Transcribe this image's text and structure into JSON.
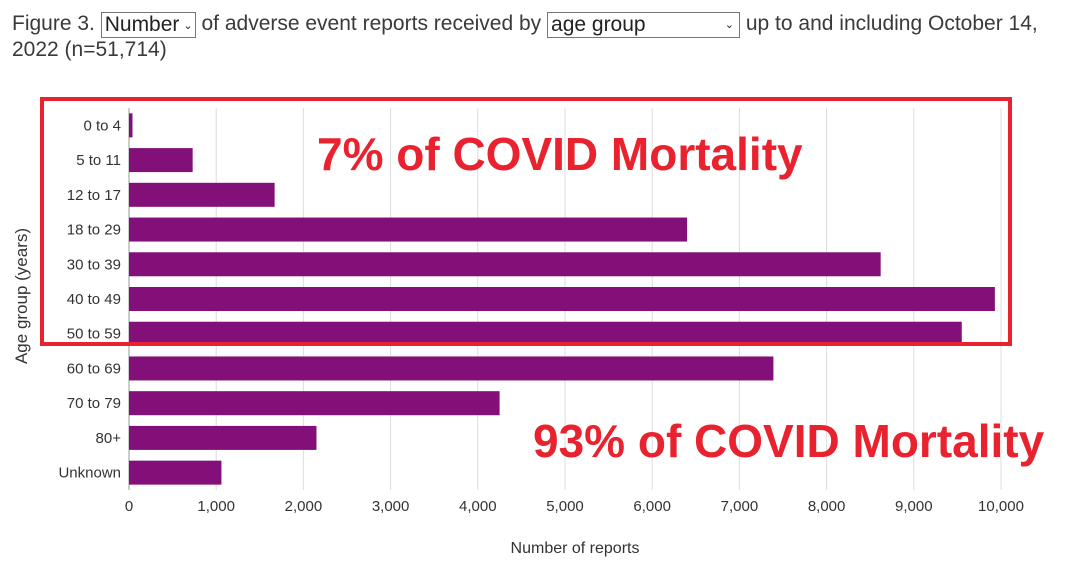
{
  "header": {
    "prefix": "Figure 3.",
    "metric_select": "Number",
    "middle": "of adverse event reports received by",
    "group_select": "age group",
    "suffix": "up to and including October 14, 2022 (n=51,714)"
  },
  "annotations": {
    "top": "7% of COVID Mortality",
    "bottom": "93% of COVID Mortality"
  },
  "colors": {
    "bar": "#821078",
    "annotation": "#e8222e",
    "grid": "#dddddd"
  },
  "chart_data": {
    "type": "bar",
    "orientation": "horizontal",
    "title": "",
    "xlabel": "Number of reports",
    "ylabel": "Age group (years)",
    "categories": [
      "0 to 4",
      "5 to 11",
      "12 to 17",
      "18 to 29",
      "30 to 39",
      "40 to 49",
      "50 to 59",
      "60 to 69",
      "70 to 79",
      "80+",
      "Unknown"
    ],
    "values": [
      40,
      730,
      1670,
      6400,
      8620,
      9930,
      9550,
      7390,
      4250,
      2150,
      1060
    ],
    "xlim": [
      0,
      10000
    ],
    "xticks": [
      0,
      1000,
      2000,
      3000,
      4000,
      5000,
      6000,
      7000,
      8000,
      9000,
      10000
    ],
    "xtick_labels": [
      "0",
      "1,000",
      "2,000",
      "3,000",
      "4,000",
      "5,000",
      "6,000",
      "7,000",
      "8,000",
      "9,000",
      "10,000"
    ],
    "grid": true,
    "legend": "none"
  }
}
